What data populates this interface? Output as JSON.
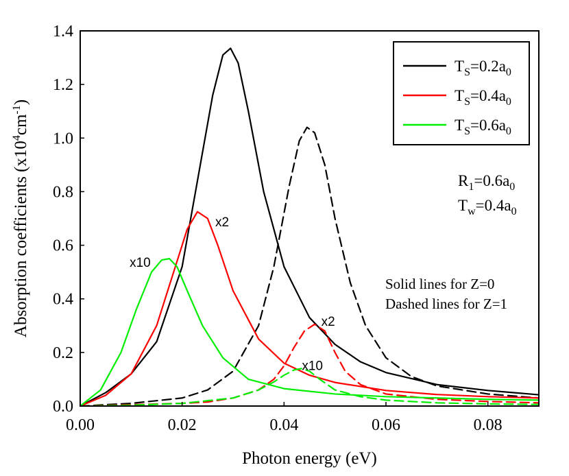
{
  "chart_data": {
    "type": "line",
    "xlabel": "Photon energy (eV)",
    "ylabel": {
      "main": "Absorption coefficients (x10",
      "sup1": "4",
      "mid": "cm",
      "sup2": "-1",
      "end": ")"
    },
    "xlim": [
      0,
      0.09
    ],
    "ylim": [
      0,
      1.4
    ],
    "x_ticks": [
      0,
      0.02,
      0.04,
      0.06,
      0.08
    ],
    "x_tick_labels": [
      "0.00",
      "0.02",
      "0.04",
      "0.06",
      "0.08"
    ],
    "y_ticks": [
      0,
      0.2,
      0.4,
      0.6,
      0.8,
      1.0,
      1.2,
      1.4
    ],
    "y_tick_labels": [
      "0.0",
      "0.2",
      "0.4",
      "0.6",
      "0.8",
      "1.0",
      "1.2",
      "1.4"
    ],
    "legend": {
      "placement": "top-right",
      "entries": [
        {
          "base": "T",
          "sub": "S",
          "rest": "=0.2a",
          "sub2": "0",
          "color": "#000000"
        },
        {
          "base": "T",
          "sub": "S",
          "rest": "=0.4a",
          "sub2": "0",
          "color": "#ff0000"
        },
        {
          "base": "T",
          "sub": "S",
          "rest": "=0.6a",
          "sub2": "0",
          "color": "#00ee00"
        }
      ]
    },
    "annotations": {
      "params": [
        {
          "base": "R",
          "sub": "1",
          "rest": "=0.6a",
          "sub2": "0"
        },
        {
          "base": "T",
          "sub": "w",
          "rest": "=0.4a",
          "sub2": "0"
        }
      ],
      "notes": [
        "Solid lines for Z=0",
        "Dashed lines for Z=1"
      ],
      "multipliers": [
        {
          "label": "x2",
          "near": "red-solid-peak",
          "x": 0.0265,
          "y": 0.67
        },
        {
          "label": "x10",
          "near": "green-solid-peak",
          "x": 0.0097,
          "y": 0.52
        },
        {
          "label": "x2",
          "near": "red-dashed-peak",
          "x": 0.0473,
          "y": 0.3
        },
        {
          "label": "x10",
          "near": "green-dashed-peak",
          "x": 0.0435,
          "y": 0.135
        }
      ]
    },
    "series": [
      {
        "name": "T_S=0.2a_0, Z=0",
        "color": "#000000",
        "dash": "solid",
        "x": [
          0,
          0.005,
          0.01,
          0.015,
          0.02,
          0.023,
          0.026,
          0.028,
          0.0295,
          0.031,
          0.033,
          0.036,
          0.04,
          0.045,
          0.05,
          0.055,
          0.06,
          0.07,
          0.08,
          0.09
        ],
        "y": [
          0,
          0.05,
          0.12,
          0.24,
          0.52,
          0.84,
          1.16,
          1.31,
          1.335,
          1.28,
          1.1,
          0.8,
          0.52,
          0.33,
          0.23,
          0.165,
          0.125,
          0.08,
          0.058,
          0.042
        ]
      },
      {
        "name": "T_S=0.2a_0, Z=1",
        "color": "#000000",
        "dash": "dashed",
        "x": [
          0,
          0.01,
          0.02,
          0.025,
          0.03,
          0.035,
          0.038,
          0.041,
          0.043,
          0.0445,
          0.046,
          0.048,
          0.05,
          0.053,
          0.056,
          0.06,
          0.065,
          0.07,
          0.08,
          0.09
        ],
        "y": [
          0,
          0.01,
          0.03,
          0.06,
          0.13,
          0.3,
          0.52,
          0.82,
          0.99,
          1.04,
          1.02,
          0.9,
          0.7,
          0.46,
          0.3,
          0.18,
          0.11,
          0.075,
          0.045,
          0.03
        ]
      },
      {
        "name": "T_S=0.4a_0, Z=0 (x2)",
        "color": "#ff0000",
        "dash": "solid",
        "x": [
          0,
          0.005,
          0.01,
          0.015,
          0.018,
          0.021,
          0.023,
          0.025,
          0.027,
          0.03,
          0.035,
          0.04,
          0.045,
          0.05,
          0.06,
          0.07,
          0.08,
          0.09
        ],
        "y": [
          0,
          0.04,
          0.12,
          0.3,
          0.48,
          0.66,
          0.725,
          0.7,
          0.6,
          0.43,
          0.25,
          0.16,
          0.115,
          0.088,
          0.058,
          0.043,
          0.035,
          0.03
        ]
      },
      {
        "name": "T_S=0.4a_0, Z=1 (x2)",
        "color": "#ff0000",
        "dash": "dashed",
        "x": [
          0,
          0.01,
          0.02,
          0.025,
          0.03,
          0.035,
          0.038,
          0.04,
          0.042,
          0.044,
          0.046,
          0.048,
          0.05,
          0.052,
          0.055,
          0.06,
          0.07,
          0.08,
          0.09
        ],
        "y": [
          0,
          0.005,
          0.01,
          0.015,
          0.03,
          0.06,
          0.1,
          0.15,
          0.22,
          0.28,
          0.305,
          0.28,
          0.2,
          0.13,
          0.08,
          0.045,
          0.025,
          0.017,
          0.012
        ]
      },
      {
        "name": "T_S=0.6a_0, Z=0 (x10)",
        "color": "#00ee00",
        "dash": "solid",
        "x": [
          0,
          0.004,
          0.008,
          0.011,
          0.014,
          0.016,
          0.0175,
          0.019,
          0.021,
          0.024,
          0.028,
          0.033,
          0.04,
          0.05,
          0.06,
          0.07,
          0.08,
          0.09
        ],
        "y": [
          0,
          0.06,
          0.2,
          0.36,
          0.5,
          0.545,
          0.55,
          0.52,
          0.43,
          0.3,
          0.18,
          0.1,
          0.065,
          0.045,
          0.035,
          0.03,
          0.025,
          0.022
        ]
      },
      {
        "name": "T_S=0.6a_0, Z=1 (x10)",
        "color": "#00ee00",
        "dash": "dashed",
        "x": [
          0,
          0.01,
          0.02,
          0.03,
          0.035,
          0.038,
          0.04,
          0.042,
          0.0435,
          0.045,
          0.047,
          0.05,
          0.055,
          0.06,
          0.07,
          0.08,
          0.09
        ],
        "y": [
          0,
          0.003,
          0.01,
          0.03,
          0.06,
          0.09,
          0.115,
          0.135,
          0.14,
          0.13,
          0.1,
          0.06,
          0.035,
          0.022,
          0.012,
          0.008,
          0.006
        ]
      }
    ]
  }
}
